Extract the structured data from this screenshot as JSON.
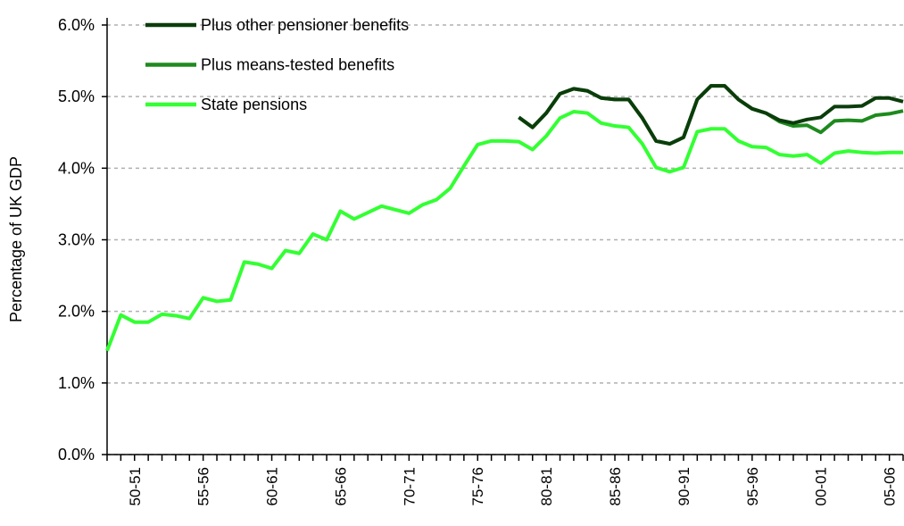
{
  "chart_data": {
    "type": "line",
    "y_label": "Percentage of UK GDP",
    "categories": [
      null,
      null,
      "50-51",
      null,
      null,
      null,
      null,
      "55-56",
      null,
      null,
      null,
      null,
      "60-61",
      null,
      null,
      null,
      null,
      "65-66",
      null,
      null,
      null,
      null,
      "70-71",
      null,
      null,
      null,
      null,
      "75-76",
      null,
      null,
      null,
      null,
      "80-81",
      null,
      null,
      null,
      null,
      "85-86",
      null,
      null,
      null,
      null,
      "90-91",
      null,
      null,
      null,
      null,
      "95-96",
      null,
      null,
      null,
      null,
      "00-01",
      null,
      null,
      null,
      null,
      "05-06",
      null
    ],
    "ylim": [
      0,
      6
    ],
    "yticks": [
      {
        "value": 0,
        "label": "0.0%"
      },
      {
        "value": 1,
        "label": "1.0%"
      },
      {
        "value": 2,
        "label": "2.0%"
      },
      {
        "value": 3,
        "label": "3.0%"
      },
      {
        "value": 4,
        "label": "4.0%"
      },
      {
        "value": 5,
        "label": "5.0%"
      },
      {
        "value": 6,
        "label": "6.0%"
      }
    ],
    "grid": true,
    "legend": "top-left",
    "series": [
      {
        "name": "Plus other pensioner benefits",
        "color": "#0b3d0b",
        "values": [
          null,
          null,
          null,
          null,
          null,
          null,
          null,
          null,
          null,
          null,
          null,
          null,
          null,
          null,
          null,
          null,
          null,
          null,
          null,
          null,
          null,
          null,
          null,
          null,
          null,
          null,
          null,
          null,
          null,
          null,
          4.71,
          4.57,
          4.77,
          5.04,
          5.11,
          5.08,
          4.98,
          4.96,
          4.96,
          4.7,
          4.38,
          4.34,
          4.43,
          4.96,
          5.15,
          5.15,
          4.96,
          4.83,
          4.77,
          4.67,
          4.63,
          4.68,
          4.71,
          4.86,
          4.86,
          4.87,
          4.98,
          4.98,
          4.93
        ]
      },
      {
        "name": "Plus means-tested benefits",
        "color": "#1e8a1e",
        "values": [
          null,
          null,
          null,
          null,
          null,
          null,
          null,
          null,
          null,
          null,
          null,
          null,
          null,
          null,
          null,
          null,
          null,
          null,
          null,
          null,
          null,
          null,
          null,
          null,
          null,
          null,
          null,
          null,
          null,
          null,
          4.71,
          4.57,
          4.77,
          5.04,
          5.11,
          5.08,
          4.98,
          4.96,
          4.96,
          4.7,
          4.38,
          4.34,
          4.43,
          4.96,
          5.15,
          5.15,
          4.96,
          4.83,
          4.77,
          4.65,
          4.59,
          4.6,
          4.5,
          4.66,
          4.67,
          4.66,
          4.74,
          4.76,
          4.8
        ]
      },
      {
        "name": "State pensions",
        "color": "#33ff33",
        "values": [
          1.45,
          1.95,
          1.85,
          1.85,
          1.96,
          1.94,
          1.9,
          2.19,
          2.14,
          2.16,
          2.69,
          2.66,
          2.6,
          2.85,
          2.81,
          3.08,
          3.0,
          3.4,
          3.29,
          3.38,
          3.47,
          3.42,
          3.37,
          3.49,
          3.56,
          3.72,
          4.03,
          4.33,
          4.38,
          4.38,
          4.37,
          4.26,
          4.45,
          4.7,
          4.79,
          4.77,
          4.63,
          4.59,
          4.57,
          4.34,
          4.01,
          3.95,
          4.01,
          4.51,
          4.55,
          4.55,
          4.38,
          4.3,
          4.29,
          4.19,
          4.17,
          4.19,
          4.07,
          4.21,
          4.24,
          4.22,
          4.21,
          4.22,
          4.22
        ]
      }
    ]
  }
}
